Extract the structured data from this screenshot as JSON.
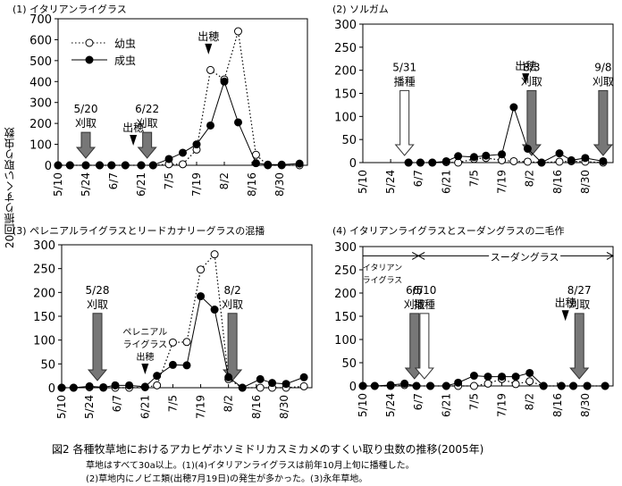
{
  "y_axis_label": "20回振りすくい取り虫数",
  "caption": {
    "title": "図2 各種牧草地におけるアカヒゲホソミドリカスミカメのすくい取り虫数の推移(2005年)",
    "note1": "草地はすべて30a以上。(1)(4)イタリアンライグラスは前年10月上旬に播種した。",
    "note2": "(2)草地内にノビエ類(出穂7月19日)の発生が多かった。(3)永年草地。"
  },
  "legend": {
    "juvenile": "幼虫",
    "adult": "成虫"
  },
  "chart_data": [
    {
      "type": "line",
      "title": "(1) イタリアンライグラス",
      "ylim": [
        0,
        700
      ],
      "yticks": [
        0,
        100,
        200,
        300,
        400,
        500,
        600,
        700
      ],
      "x_tick_labels": [
        "5/10",
        "5/24",
        "6/7",
        "6/21",
        "7/5",
        "7/19",
        "8/2",
        "8/16",
        "8/30"
      ],
      "x": [
        "5/10",
        "5/16",
        "5/24",
        "5/31",
        "6/6",
        "6/13",
        "6/21",
        "6/27",
        "7/5",
        "7/12",
        "7/19",
        "7/26",
        "8/2",
        "8/9",
        "8/18",
        "8/24",
        "8/31",
        "9/9"
      ],
      "series": [
        {
          "name": "幼虫",
          "style": "dotted-open",
          "values": [
            0,
            0,
            0,
            0,
            0,
            0,
            0,
            0,
            5,
            5,
            75,
            455,
            410,
            640,
            50,
            0,
            0,
            0
          ]
        },
        {
          "name": "成虫",
          "style": "solid-filled",
          "values": [
            0,
            0,
            0,
            0,
            0,
            0,
            0,
            0,
            30,
            60,
            100,
            190,
            400,
            205,
            10,
            3,
            3,
            8
          ]
        }
      ],
      "annotations": [
        {
          "type": "cut-arrow",
          "date": "5/24",
          "label1": "5/20",
          "label2": "刈取"
        },
        {
          "type": "cut-arrow",
          "date": "6/24",
          "label1": "6/22",
          "label2": "刈取"
        },
        {
          "type": "heading-marker",
          "date": "6/17",
          "label": "出穂"
        },
        {
          "type": "heading-marker",
          "date": "7/25",
          "label": "出穂"
        }
      ],
      "legend_position": "top-left"
    },
    {
      "type": "line",
      "title": "(2) ソルガム",
      "ylim": [
        0,
        300
      ],
      "yticks": [
        0,
        50,
        100,
        150,
        200,
        250,
        300
      ],
      "x_tick_labels": [
        "5/10",
        "5/24",
        "6/7",
        "6/21",
        "7/5",
        "7/19",
        "8/2",
        "8/16",
        "8/30"
      ],
      "x": [
        "6/2",
        "6/8",
        "6/14",
        "6/21",
        "6/27",
        "7/5",
        "7/11",
        "7/19",
        "7/25",
        "8/1",
        "8/8",
        "8/17",
        "8/23",
        "8/30",
        "9/8"
      ],
      "series": [
        {
          "name": "幼虫",
          "style": "dotted-open",
          "values": [
            0,
            0,
            0,
            1,
            0,
            8,
            10,
            5,
            3,
            2,
            0,
            2,
            3,
            2,
            0
          ]
        },
        {
          "name": "成虫",
          "style": "solid-filled",
          "values": [
            0,
            0,
            0,
            3,
            14,
            12,
            15,
            18,
            120,
            30,
            0,
            20,
            5,
            10,
            3
          ]
        }
      ],
      "annotations": [
        {
          "type": "sow-arrow",
          "date": "5/31",
          "label1": "5/31",
          "label2": "播種"
        },
        {
          "type": "heading-marker",
          "date": "7/31",
          "label": "出穂"
        },
        {
          "type": "cut-arrow",
          "date": "8/3",
          "label1": "8/3",
          "label2": "刈取"
        },
        {
          "type": "cut-arrow",
          "date": "9/8",
          "label1": "9/8",
          "label2": "刈取"
        }
      ]
    },
    {
      "type": "line",
      "title": "(3) ペレニアルライグラスとリードカナリーグラスの混播",
      "ylim": [
        0,
        300
      ],
      "yticks": [
        0,
        50,
        100,
        150,
        200,
        250,
        300
      ],
      "x_tick_labels": [
        "5/10",
        "5/24",
        "6/7",
        "6/21",
        "7/5",
        "7/19",
        "8/2",
        "8/16",
        "8/30"
      ],
      "x": [
        "5/10",
        "5/16",
        "5/24",
        "5/31",
        "6/6",
        "6/13",
        "6/21",
        "6/27",
        "7/5",
        "7/12",
        "7/19",
        "7/26",
        "8/2",
        "8/9",
        "8/18",
        "8/24",
        "8/31",
        "9/9"
      ],
      "series": [
        {
          "name": "幼虫",
          "style": "dotted-open",
          "values": [
            0,
            0,
            1,
            0,
            0,
            0,
            1,
            5,
            95,
            96,
            248,
            280,
            18,
            0,
            0,
            0,
            0,
            3
          ]
        },
        {
          "name": "成虫",
          "style": "solid-filled",
          "values": [
            0,
            0,
            3,
            1,
            5,
            5,
            2,
            25,
            48,
            47,
            192,
            164,
            22,
            0,
            18,
            10,
            8,
            22
          ]
        }
      ],
      "annotations": [
        {
          "type": "cut-arrow",
          "date": "5/28",
          "label1": "5/28",
          "label2": "刈取"
        },
        {
          "type": "heading-marker",
          "date": "6/21",
          "label": "ペレニアル\nライグラス\n出穂"
        },
        {
          "type": "cut-arrow",
          "date": "8/4",
          "label1": "8/2",
          "label2": "刈取"
        }
      ]
    },
    {
      "type": "line",
      "title": "(4) イタリアンライグラスとスーダングラスの二毛作",
      "ylim": [
        0,
        300
      ],
      "yticks": [
        0,
        50,
        100,
        150,
        200,
        250,
        300
      ],
      "x_tick_labels": [
        "5/10",
        "5/24",
        "6/7",
        "6/21",
        "7/5",
        "7/19",
        "8/2",
        "8/16",
        "8/30"
      ],
      "x": [
        "5/10",
        "5/16",
        "5/24",
        "5/31",
        "6/6",
        "6/13",
        "6/21",
        "6/27",
        "7/5",
        "7/12",
        "7/19",
        "7/26",
        "8/2",
        "8/9",
        "8/18",
        "8/24",
        "8/31",
        "9/9"
      ],
      "series": [
        {
          "name": "幼虫",
          "style": "dotted-open",
          "values": [
            0,
            0,
            0,
            2,
            0,
            0,
            0,
            0,
            0,
            5,
            15,
            4,
            10,
            0,
            0,
            0,
            0,
            0
          ]
        },
        {
          "name": "成虫",
          "style": "solid-filled",
          "values": [
            0,
            0,
            2,
            5,
            0,
            0,
            0,
            7,
            22,
            20,
            20,
            20,
            28,
            0,
            0,
            0,
            0,
            0
          ]
        }
      ],
      "annotations": [
        {
          "type": "period",
          "from": "5/10",
          "to": "6/7",
          "label": "イタリアン\nライグラス"
        },
        {
          "type": "period",
          "from": "6/7",
          "to": "9/13",
          "label": "スーダングラス"
        },
        {
          "type": "cut-arrow",
          "date": "6/5",
          "label1": "6/5",
          "label2": "刈取"
        },
        {
          "type": "sow-arrow",
          "date": "6/10",
          "label1": "6/10",
          "label2": "播種"
        },
        {
          "type": "heading-marker",
          "date": "8/20",
          "label": "出穂"
        },
        {
          "type": "cut-arrow",
          "date": "8/27",
          "label1": "8/27",
          "label2": "刈取"
        }
      ]
    }
  ]
}
